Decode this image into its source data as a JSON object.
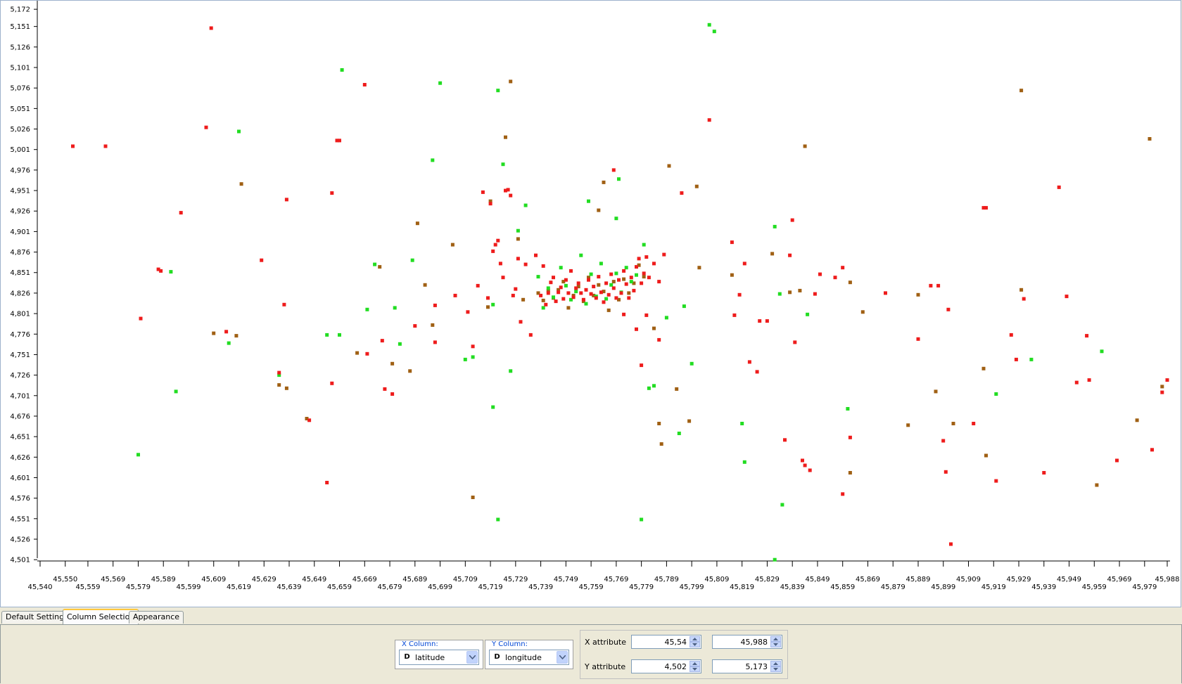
{
  "chart_data": {
    "type": "scatter",
    "x_attribute": "latitude",
    "y_attribute": "longitude",
    "xlim": [
      45.54,
      45.988
    ],
    "ylim": [
      4.502,
      5.173
    ],
    "x_ticks_top": [
      "45,550",
      "45,569",
      "45,589",
      "45,609",
      "45,629",
      "45,649",
      "45,669",
      "45,689",
      "45,709",
      "45,729",
      "45,749",
      "45,769",
      "45,789",
      "45,809",
      "45,829",
      "45,849",
      "45,869",
      "45,889",
      "45,909",
      "45,929",
      "45,949",
      "45,969",
      "45,988"
    ],
    "x_ticks_bottom": [
      "45,540",
      "45,559",
      "45,579",
      "45,599",
      "45,619",
      "45,639",
      "45,659",
      "45,679",
      "45,699",
      "45,719",
      "45,739",
      "45,759",
      "45,779",
      "45,799",
      "45,819",
      "45,839",
      "45,859",
      "45,879",
      "45,899",
      "45,919",
      "45,939",
      "45,959",
      "45,979"
    ],
    "y_ticks": [
      "5,172",
      "5,151",
      "5,126",
      "5,101",
      "5,076",
      "5,051",
      "5,026",
      "5,001",
      "4,976",
      "4,951",
      "4,926",
      "4,901",
      "4,876",
      "4,851",
      "4,826",
      "4,801",
      "4,776",
      "4,751",
      "4,726",
      "4,701",
      "4,676",
      "4,651",
      "4,626",
      "4,601",
      "4,576",
      "4,551",
      "4,526",
      "4,501"
    ],
    "colors": {
      "red": "#ee1c1c",
      "olive": "#a06014",
      "green": "#22dd22"
    },
    "points": {
      "red": [
        [
          45.553,
          5.005
        ],
        [
          45.566,
          5.005
        ],
        [
          45.608,
          5.149
        ],
        [
          45.606,
          5.028
        ],
        [
          45.58,
          4.795
        ],
        [
          45.587,
          4.855
        ],
        [
          45.588,
          4.853
        ],
        [
          45.596,
          4.924
        ],
        [
          45.614,
          4.779
        ],
        [
          45.628,
          4.866
        ],
        [
          45.637,
          4.812
        ],
        [
          45.635,
          4.729
        ],
        [
          45.638,
          4.94
        ],
        [
          45.647,
          4.671
        ],
        [
          45.654,
          4.595
        ],
        [
          45.656,
          4.948
        ],
        [
          45.658,
          5.012
        ],
        [
          45.659,
          5.012
        ],
        [
          45.656,
          4.716
        ],
        [
          45.669,
          5.08
        ],
        [
          45.67,
          4.752
        ],
        [
          45.676,
          4.768
        ],
        [
          45.677,
          4.709
        ],
        [
          45.68,
          4.703
        ],
        [
          45.689,
          4.786
        ],
        [
          45.697,
          4.766
        ],
        [
          45.697,
          4.811
        ],
        [
          45.705,
          4.823
        ],
        [
          45.71,
          4.803
        ],
        [
          45.714,
          4.835
        ],
        [
          45.712,
          4.761
        ],
        [
          45.716,
          4.949
        ],
        [
          45.718,
          4.82
        ],
        [
          45.719,
          4.935
        ],
        [
          45.72,
          4.877
        ],
        [
          45.721,
          4.885
        ],
        [
          45.722,
          4.89
        ],
        [
          45.723,
          4.862
        ],
        [
          45.724,
          4.845
        ],
        [
          45.725,
          4.951
        ],
        [
          45.726,
          4.952
        ],
        [
          45.727,
          4.945
        ],
        [
          45.728,
          4.823
        ],
        [
          45.729,
          4.831
        ],
        [
          45.73,
          4.868
        ],
        [
          45.731,
          4.791
        ],
        [
          45.733,
          4.861
        ],
        [
          45.735,
          4.775
        ],
        [
          45.737,
          4.872
        ],
        [
          45.739,
          4.823
        ],
        [
          45.74,
          4.859
        ],
        [
          45.741,
          4.812
        ],
        [
          45.742,
          4.826
        ],
        [
          45.743,
          4.839
        ],
        [
          45.744,
          4.845
        ],
        [
          45.745,
          4.816
        ],
        [
          45.746,
          4.827
        ],
        [
          45.747,
          4.833
        ],
        [
          45.748,
          4.819
        ],
        [
          45.749,
          4.842
        ],
        [
          45.75,
          4.826
        ],
        [
          45.751,
          4.853
        ],
        [
          45.752,
          4.821
        ],
        [
          45.753,
          4.832
        ],
        [
          45.754,
          4.838
        ],
        [
          45.755,
          4.826
        ],
        [
          45.756,
          4.818
        ],
        [
          45.757,
          4.83
        ],
        [
          45.758,
          4.842
        ],
        [
          45.759,
          4.825
        ],
        [
          45.76,
          4.834
        ],
        [
          45.761,
          4.82
        ],
        [
          45.762,
          4.846
        ],
        [
          45.763,
          4.827
        ],
        [
          45.764,
          4.815
        ],
        [
          45.765,
          4.838
        ],
        [
          45.766,
          4.824
        ],
        [
          45.767,
          4.849
        ],
        [
          45.768,
          4.832
        ],
        [
          45.769,
          4.82
        ],
        [
          45.77,
          4.842
        ],
        [
          45.771,
          4.826
        ],
        [
          45.772,
          4.853
        ],
        [
          45.773,
          4.837
        ],
        [
          45.774,
          4.82
        ],
        [
          45.775,
          4.845
        ],
        [
          45.776,
          4.829
        ],
        [
          45.777,
          4.858
        ],
        [
          45.778,
          4.868
        ],
        [
          45.779,
          4.838
        ],
        [
          45.78,
          4.85
        ],
        [
          45.781,
          4.87
        ],
        [
          45.782,
          4.845
        ],
        [
          45.784,
          4.862
        ],
        [
          45.786,
          4.84
        ],
        [
          45.788,
          4.873
        ],
        [
          45.768,
          4.976
        ],
        [
          45.772,
          4.8
        ],
        [
          45.777,
          4.782
        ],
        [
          45.779,
          4.738
        ],
        [
          45.781,
          4.799
        ],
        [
          45.786,
          4.769
        ],
        [
          45.795,
          4.948
        ],
        [
          45.806,
          5.037
        ],
        [
          45.815,
          4.888
        ],
        [
          45.816,
          4.799
        ],
        [
          45.818,
          4.824
        ],
        [
          45.82,
          4.862
        ],
        [
          45.822,
          4.742
        ],
        [
          45.825,
          4.73
        ],
        [
          45.826,
          4.792
        ],
        [
          45.829,
          4.792
        ],
        [
          45.838,
          4.872
        ],
        [
          45.839,
          4.915
        ],
        [
          45.84,
          4.766
        ],
        [
          45.836,
          4.647
        ],
        [
          45.843,
          4.622
        ],
        [
          45.844,
          4.616
        ],
        [
          45.846,
          4.61
        ],
        [
          45.848,
          4.825
        ],
        [
          45.85,
          4.849
        ],
        [
          45.856,
          4.845
        ],
        [
          45.859,
          4.857
        ],
        [
          45.859,
          4.581
        ],
        [
          45.862,
          4.65
        ],
        [
          45.876,
          4.826
        ],
        [
          45.889,
          4.77
        ],
        [
          45.894,
          4.835
        ],
        [
          45.897,
          4.835
        ],
        [
          45.901,
          4.806
        ],
        [
          45.899,
          4.646
        ],
        [
          45.9,
          4.608
        ],
        [
          45.902,
          4.52
        ],
        [
          45.911,
          4.667
        ],
        [
          45.915,
          4.93
        ],
        [
          45.916,
          4.93
        ],
        [
          45.92,
          4.597
        ],
        [
          45.926,
          4.775
        ],
        [
          45.928,
          4.745
        ],
        [
          45.931,
          4.819
        ],
        [
          45.939,
          4.607
        ],
        [
          45.945,
          4.955
        ],
        [
          45.948,
          4.822
        ],
        [
          45.952,
          4.717
        ],
        [
          45.956,
          4.774
        ],
        [
          45.957,
          4.72
        ],
        [
          45.968,
          4.622
        ],
        [
          45.982,
          4.635
        ],
        [
          45.986,
          4.705
        ],
        [
          45.988,
          4.72
        ]
      ],
      "olive": [
        [
          45.609,
          4.777
        ],
        [
          45.618,
          4.774
        ],
        [
          45.62,
          4.959
        ],
        [
          45.635,
          4.714
        ],
        [
          45.638,
          4.71
        ],
        [
          45.646,
          4.673
        ],
        [
          45.666,
          4.753
        ],
        [
          45.675,
          4.858
        ],
        [
          45.68,
          4.74
        ],
        [
          45.687,
          4.731
        ],
        [
          45.69,
          4.911
        ],
        [
          45.693,
          4.836
        ],
        [
          45.696,
          4.787
        ],
        [
          45.704,
          4.885
        ],
        [
          45.712,
          4.577
        ],
        [
          45.718,
          4.809
        ],
        [
          45.719,
          4.938
        ],
        [
          45.725,
          5.016
        ],
        [
          45.727,
          5.084
        ],
        [
          45.73,
          4.892
        ],
        [
          45.732,
          4.818
        ],
        [
          45.738,
          4.826
        ],
        [
          45.74,
          4.817
        ],
        [
          45.742,
          4.829
        ],
        [
          45.744,
          4.82
        ],
        [
          45.746,
          4.83
        ],
        [
          45.748,
          4.84
        ],
        [
          45.75,
          4.808
        ],
        [
          45.752,
          4.823
        ],
        [
          45.754,
          4.834
        ],
        [
          45.756,
          4.816
        ],
        [
          45.758,
          4.845
        ],
        [
          45.76,
          4.823
        ],
        [
          45.762,
          4.836
        ],
        [
          45.764,
          4.828
        ],
        [
          45.766,
          4.805
        ],
        [
          45.768,
          4.84
        ],
        [
          45.77,
          4.818
        ],
        [
          45.772,
          4.843
        ],
        [
          45.774,
          4.826
        ],
        [
          45.776,
          4.838
        ],
        [
          45.778,
          4.86
        ],
        [
          45.78,
          4.846
        ],
        [
          45.784,
          4.783
        ],
        [
          45.762,
          4.927
        ],
        [
          45.764,
          4.961
        ],
        [
          45.786,
          4.667
        ],
        [
          45.787,
          4.642
        ],
        [
          45.79,
          4.981
        ],
        [
          45.793,
          4.709
        ],
        [
          45.798,
          4.67
        ],
        [
          45.801,
          4.956
        ],
        [
          45.802,
          4.857
        ],
        [
          45.815,
          4.848
        ],
        [
          45.831,
          4.874
        ],
        [
          45.838,
          4.827
        ],
        [
          45.842,
          4.829
        ],
        [
          45.844,
          5.005
        ],
        [
          45.862,
          4.839
        ],
        [
          45.862,
          4.607
        ],
        [
          45.867,
          4.803
        ],
        [
          45.885,
          4.665
        ],
        [
          45.889,
          4.824
        ],
        [
          45.896,
          4.706
        ],
        [
          45.903,
          4.667
        ],
        [
          45.915,
          4.734
        ],
        [
          45.916,
          4.628
        ],
        [
          45.93,
          4.83
        ],
        [
          45.93,
          5.073
        ],
        [
          45.96,
          4.592
        ],
        [
          45.976,
          4.671
        ],
        [
          45.981,
          5.014
        ],
        [
          45.986,
          4.712
        ]
      ],
      "green": [
        [
          45.579,
          4.629
        ],
        [
          45.592,
          4.852
        ],
        [
          45.594,
          4.706
        ],
        [
          45.615,
          4.765
        ],
        [
          45.619,
          5.023
        ],
        [
          45.635,
          4.726
        ],
        [
          45.654,
          4.775
        ],
        [
          45.66,
          5.098
        ],
        [
          45.659,
          4.775
        ],
        [
          45.67,
          4.806
        ],
        [
          45.673,
          4.861
        ],
        [
          45.681,
          4.808
        ],
        [
          45.683,
          4.764
        ],
        [
          45.688,
          4.866
        ],
        [
          45.696,
          4.988
        ],
        [
          45.699,
          5.082
        ],
        [
          45.709,
          4.745
        ],
        [
          45.712,
          4.748
        ],
        [
          45.72,
          4.812
        ],
        [
          45.72,
          4.687
        ],
        [
          45.722,
          4.55
        ],
        [
          45.722,
          5.073
        ],
        [
          45.724,
          4.983
        ],
        [
          45.727,
          4.731
        ],
        [
          45.73,
          4.902
        ],
        [
          45.733,
          4.933
        ],
        [
          45.738,
          4.846
        ],
        [
          45.74,
          4.808
        ],
        [
          45.742,
          4.832
        ],
        [
          45.744,
          4.821
        ],
        [
          45.747,
          4.857
        ],
        [
          45.749,
          4.835
        ],
        [
          45.751,
          4.818
        ],
        [
          45.753,
          4.828
        ],
        [
          45.755,
          4.872
        ],
        [
          45.757,
          4.813
        ],
        [
          45.759,
          4.849
        ],
        [
          45.761,
          4.822
        ],
        [
          45.763,
          4.862
        ],
        [
          45.765,
          4.819
        ],
        [
          45.767,
          4.836
        ],
        [
          45.769,
          4.85
        ],
        [
          45.771,
          4.827
        ],
        [
          45.773,
          4.857
        ],
        [
          45.775,
          4.84
        ],
        [
          45.777,
          4.848
        ],
        [
          45.758,
          4.938
        ],
        [
          45.769,
          4.917
        ],
        [
          45.77,
          4.965
        ],
        [
          45.779,
          4.55
        ],
        [
          45.78,
          4.885
        ],
        [
          45.782,
          4.71
        ],
        [
          45.784,
          4.713
        ],
        [
          45.789,
          4.796
        ],
        [
          45.794,
          4.655
        ],
        [
          45.796,
          4.81
        ],
        [
          45.799,
          4.74
        ],
        [
          45.806,
          5.153
        ],
        [
          45.808,
          5.145
        ],
        [
          45.819,
          4.667
        ],
        [
          45.82,
          4.62
        ],
        [
          45.832,
          4.907
        ],
        [
          45.832,
          4.501
        ],
        [
          45.835,
          4.568
        ],
        [
          45.834,
          4.825
        ],
        [
          45.845,
          4.8
        ],
        [
          45.861,
          4.685
        ],
        [
          45.92,
          4.703
        ],
        [
          45.934,
          4.745
        ],
        [
          45.962,
          4.755
        ]
      ]
    }
  },
  "tabs": [
    "Default Settings",
    "Column Selection",
    "Appearance"
  ],
  "controls": {
    "x_column_label": "X Column:",
    "x_column_value": "latitude",
    "y_column_label": "Y Column:",
    "y_column_value": "longitude",
    "type_icon_letter": "D",
    "x_attr_label": "X attribute",
    "x_min": "45,54",
    "x_max": "45,988",
    "y_attr_label": "Y attribute",
    "y_min": "4,502",
    "y_max": "5,173"
  }
}
